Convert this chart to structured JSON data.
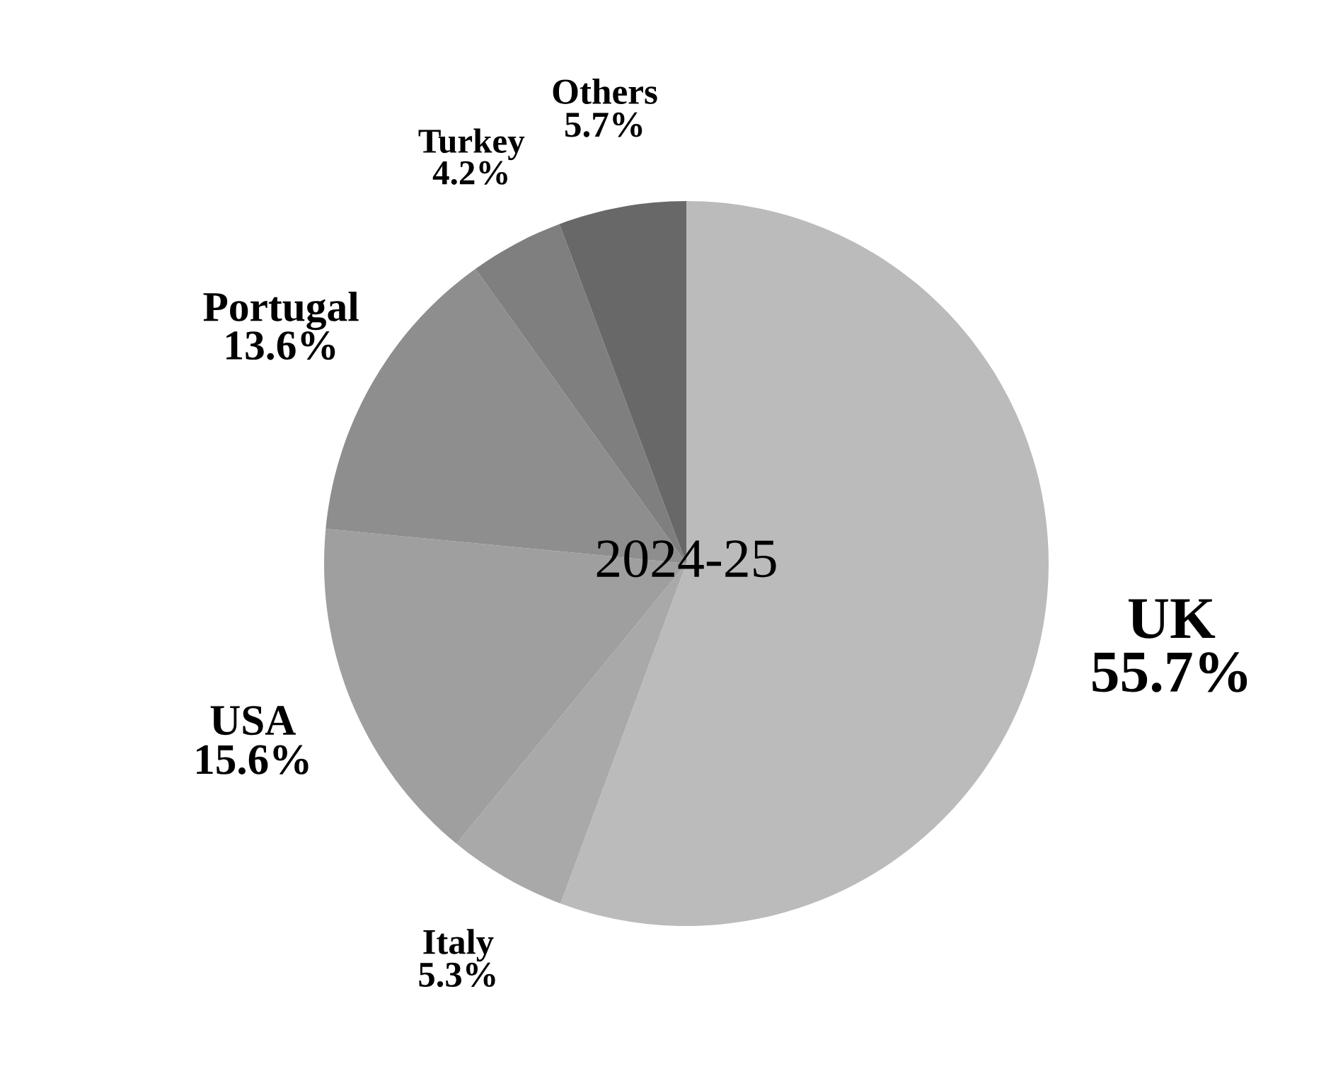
{
  "chart_data": {
    "type": "pie",
    "categories": [
      "UK",
      "Italy",
      "USA",
      "Portugal",
      "Turkey",
      "Others"
    ],
    "values": [
      55.7,
      5.3,
      15.6,
      13.6,
      4.2,
      5.7
    ],
    "value_labels": [
      "55.7%",
      "5.3%",
      "15.6%",
      "13.6%",
      "4.2%",
      "5.7%"
    ],
    "colors": [
      "#bbbbbb",
      "#a9a9a9",
      "#9f9f9f",
      "#8e8e8e",
      "#7f7f7f",
      "#686868"
    ],
    "annotations": [
      "2024-25"
    ],
    "legend": false
  }
}
